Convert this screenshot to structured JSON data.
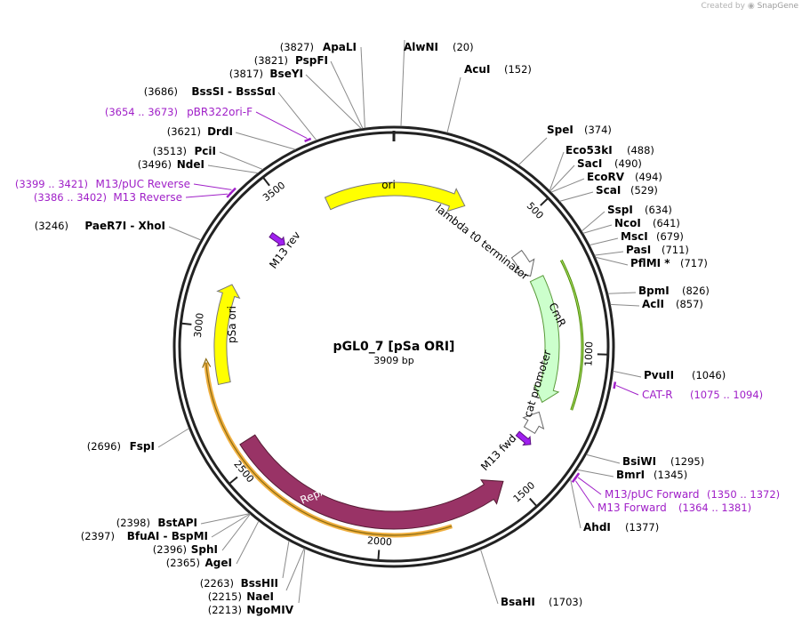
{
  "watermark": {
    "prefix": "Created by",
    "brand": "SnapGene"
  },
  "plasmid": {
    "name": "pGL0_7 [pSa ORI]",
    "length_label": "3909 bp",
    "length": 3909
  },
  "ticks": [
    "500",
    "1000",
    "1500",
    "2000",
    "2500",
    "3000",
    "3500"
  ],
  "sites": [
    {
      "name": "AlwNI",
      "pos": "(20)"
    },
    {
      "name": "AcuI",
      "pos": "(152)"
    },
    {
      "name": "SpeI",
      "pos": "(374)"
    },
    {
      "name": "Eco53kI",
      "pos": "(488)"
    },
    {
      "name": "SacI",
      "pos": "(490)"
    },
    {
      "name": "EcoRV",
      "pos": "(494)"
    },
    {
      "name": "ScaI",
      "pos": "(529)"
    },
    {
      "name": "SspI",
      "pos": "(634)"
    },
    {
      "name": "NcoI",
      "pos": "(641)"
    },
    {
      "name": "MscI",
      "pos": "(679)"
    },
    {
      "name": "PasI",
      "pos": "(711)"
    },
    {
      "name": "PflMI *",
      "pos": "(717)"
    },
    {
      "name": "BpmI",
      "pos": "(826)"
    },
    {
      "name": "AclI",
      "pos": "(857)"
    },
    {
      "name": "PvuII",
      "pos": "(1046)"
    },
    {
      "name": "BsiWI",
      "pos": "(1295)"
    },
    {
      "name": "BmrI",
      "pos": "(1345)"
    },
    {
      "name": "AhdI",
      "pos": "(1377)"
    },
    {
      "name": "BsaHI",
      "pos": "(1703)"
    },
    {
      "name": "NgoMIV",
      "pos": "(2213)"
    },
    {
      "name": "NaeI",
      "pos": "(2215)"
    },
    {
      "name": "BssHII",
      "pos": "(2263)"
    },
    {
      "name": "AgeI",
      "pos": "(2365)"
    },
    {
      "name": "SphI",
      "pos": "(2396)"
    },
    {
      "name": "BfuAI - BspMI",
      "pos": "(2397)"
    },
    {
      "name": "BstAPI",
      "pos": "(2398)"
    },
    {
      "name": "FspI",
      "pos": "(2696)"
    },
    {
      "name": "PaeR7I - XhoI",
      "pos": "(3246)"
    },
    {
      "name": "NdeI",
      "pos": "(3496)"
    },
    {
      "name": "PciI",
      "pos": "(3513)"
    },
    {
      "name": "DrdI",
      "pos": "(3621)"
    },
    {
      "name": "BssSI - BssSαI",
      "pos": "(3686)"
    },
    {
      "name": "BseYI",
      "pos": "(3817)"
    },
    {
      "name": "PspFI",
      "pos": "(3821)"
    },
    {
      "name": "ApaLI",
      "pos": "(3827)"
    }
  ],
  "primers": [
    {
      "name": "CAT-R",
      "range": "(1075 .. 1094)"
    },
    {
      "name": "M13/pUC Forward",
      "range": "(1350 .. 1372)"
    },
    {
      "name": "M13 Forward",
      "range": "(1364 .. 1381)"
    },
    {
      "name": "M13/pUC Reverse",
      "range": "(3399 .. 3421)"
    },
    {
      "name": "M13 Reverse",
      "range": "(3386 .. 3402)"
    },
    {
      "name": "pBR322ori-F",
      "range": "(3654 .. 3673)"
    }
  ],
  "features": [
    {
      "name": "ori",
      "color": "#ffff00"
    },
    {
      "name": "lambda t0 terminator",
      "color": "#ffffff"
    },
    {
      "name": "CmR",
      "color": "#ccffcc"
    },
    {
      "name": "cat promoter",
      "color": "#ffffff"
    },
    {
      "name": "M13 fwd",
      "color": "#a020f0"
    },
    {
      "name": "RepA",
      "color": "#993366"
    },
    {
      "name": "pSa ori",
      "color": "#ffff00"
    },
    {
      "name": "M13 rev",
      "color": "#a020f0"
    }
  ],
  "colors": {
    "primer": "#a020c8",
    "backbone": "#222222",
    "orf_outline": "#4d8a00",
    "orf2_outline": "#f0b040"
  }
}
